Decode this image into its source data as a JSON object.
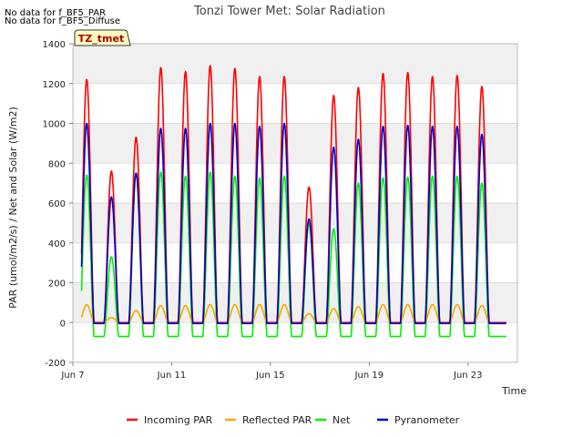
{
  "notes": [
    "No data for f_BF5_PAR",
    "No data for f_BF5_Diffuse"
  ],
  "badge": "TZ_tmet",
  "chart_data": {
    "type": "line",
    "title": "Tonzi Tower Met: Solar Radiation",
    "xlabel": "Time",
    "ylabel": "PAR (umol/m2/s) / Net and Solar (W/m2)",
    "xlim": [
      "2024-06-07",
      "2024-06-25"
    ],
    "x_ticks": [
      "Jun 7",
      "Jun 11",
      "Jun 15",
      "Jun 19",
      "Jun 23"
    ],
    "ylim": [
      -200,
      1400
    ],
    "y_ticks": [
      -200,
      0,
      200,
      400,
      600,
      800,
      1000,
      1200,
      1400
    ],
    "grid": true,
    "legend_position": "bottom",
    "days": [
      "Jun 7",
      "Jun 8",
      "Jun 9",
      "Jun 10",
      "Jun 11",
      "Jun 12",
      "Jun 13",
      "Jun 14",
      "Jun 15",
      "Jun 16",
      "Jun 17",
      "Jun 18",
      "Jun 19",
      "Jun 20",
      "Jun 21",
      "Jun 22",
      "Jun 23",
      "Jun 24"
    ],
    "series": [
      {
        "name": "Incoming PAR",
        "color": "#ff0000",
        "daily_max": [
          1220,
          760,
          930,
          1280,
          1260,
          1290,
          1275,
          1235,
          1235,
          680,
          1140,
          1180,
          1250,
          1255,
          1235,
          1240,
          1185,
          null
        ],
        "night_value": 0
      },
      {
        "name": "Reflected PAR",
        "color": "#ffa500",
        "daily_max": [
          90,
          25,
          60,
          85,
          85,
          90,
          90,
          90,
          90,
          45,
          70,
          80,
          90,
          90,
          90,
          90,
          85,
          null
        ],
        "night_value": 0
      },
      {
        "name": "Net",
        "color": "#00ee00",
        "daily_max": [
          740,
          330,
          750,
          755,
          735,
          755,
          735,
          725,
          735,
          500,
          470,
          700,
          725,
          730,
          735,
          735,
          700,
          null
        ],
        "night_value": -70
      },
      {
        "name": "Pyranometer",
        "color": "#0000cc",
        "daily_max": [
          1000,
          630,
          750,
          975,
          975,
          1000,
          1000,
          985,
          1000,
          520,
          880,
          920,
          985,
          990,
          985,
          985,
          945,
          null
        ],
        "night_value": -5
      }
    ]
  }
}
